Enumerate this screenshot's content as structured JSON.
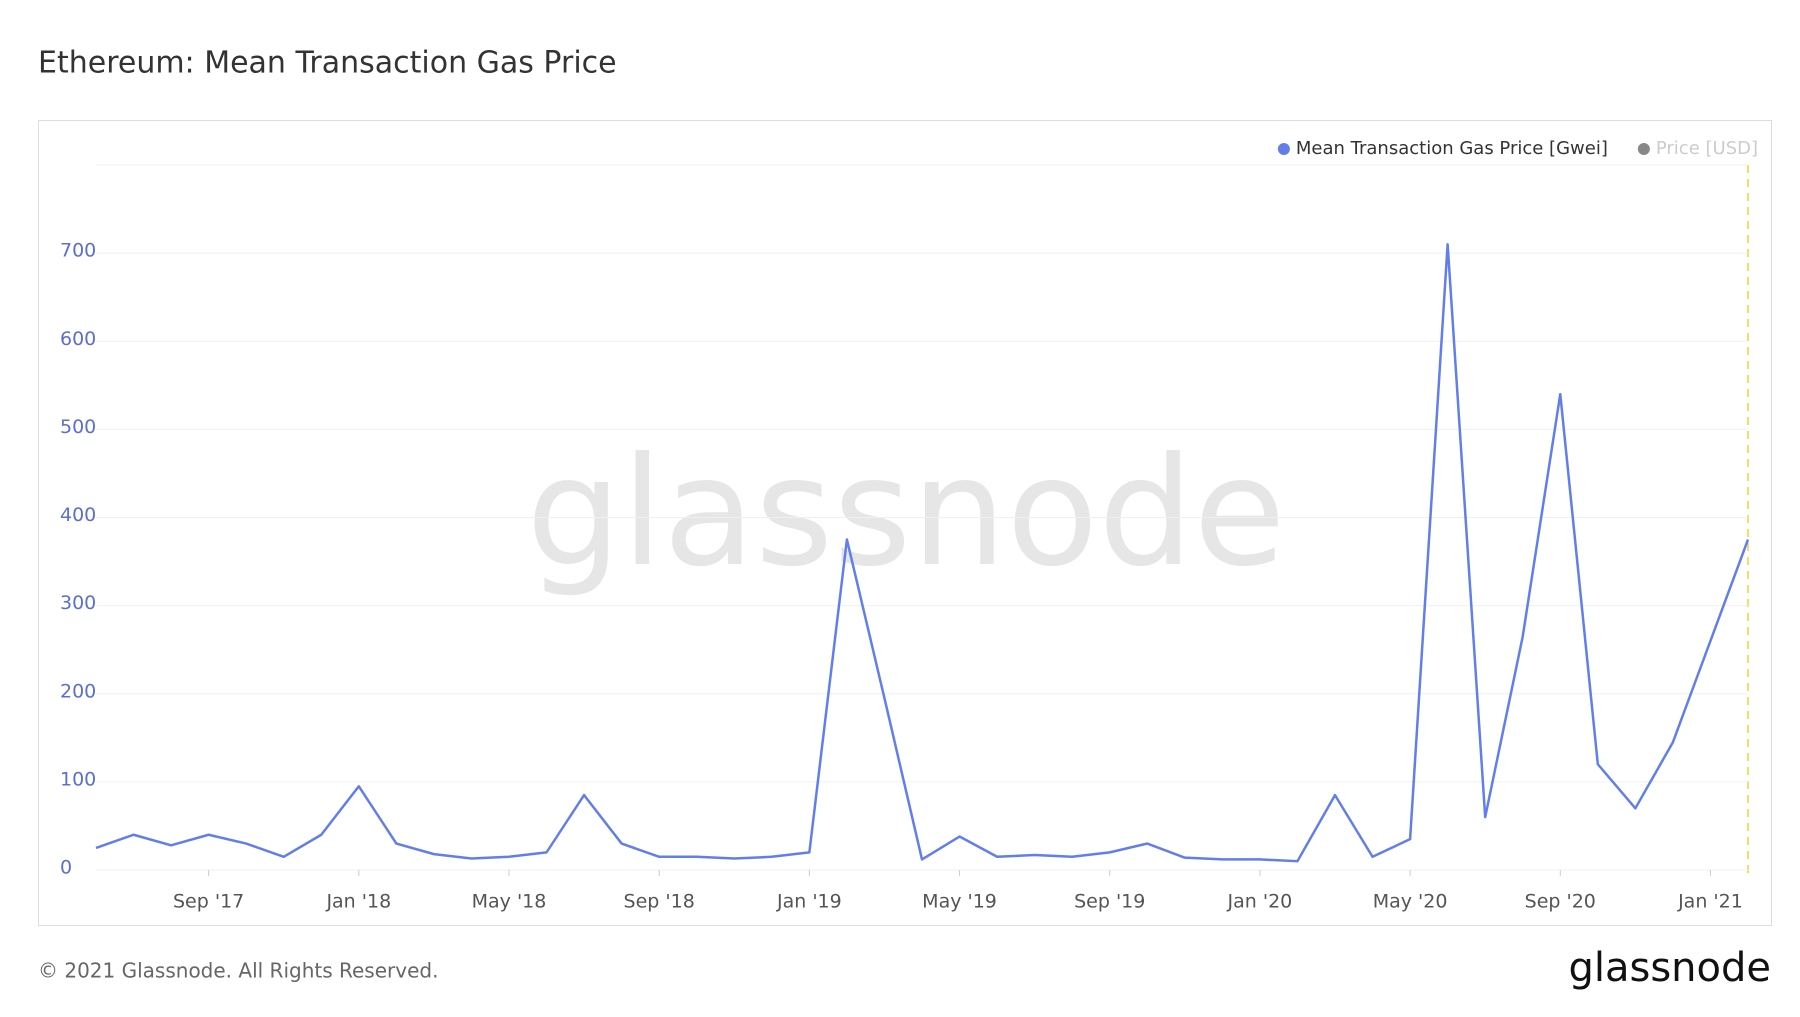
{
  "chart_data": {
    "type": "line",
    "title": "Ethereum: Mean Transaction Gas Price",
    "x": [
      "2017-06",
      "2017-07",
      "2017-08",
      "2017-09",
      "2017-10",
      "2017-11",
      "2017-12",
      "2018-01",
      "2018-02",
      "2018-03",
      "2018-04",
      "2018-05",
      "2018-06",
      "2018-07",
      "2018-08",
      "2018-09",
      "2018-10",
      "2018-11",
      "2018-12",
      "2019-01",
      "2019-02",
      "2019-03",
      "2019-04",
      "2019-05",
      "2019-06",
      "2019-07",
      "2019-08",
      "2019-09",
      "2019-10",
      "2019-11",
      "2019-12",
      "2020-01",
      "2020-02",
      "2020-03",
      "2020-04",
      "2020-05",
      "2020-06",
      "2020-07",
      "2020-08",
      "2020-09",
      "2020-10",
      "2020-11",
      "2020-12",
      "2021-01",
      "2021-02"
    ],
    "series": [
      {
        "name": "Mean Transaction Gas Price [Gwei]",
        "color": "#627eea",
        "visible": true,
        "values": [
          25,
          40,
          28,
          40,
          30,
          15,
          40,
          95,
          30,
          18,
          13,
          15,
          20,
          85,
          30,
          15,
          15,
          13,
          15,
          20,
          375,
          195,
          12,
          38,
          15,
          17,
          15,
          20,
          30,
          14,
          12,
          12,
          10,
          85,
          15,
          35,
          710,
          60,
          265,
          540,
          120,
          70,
          145,
          260,
          375
        ]
      },
      {
        "name": "Price [USD]",
        "color": "#888888",
        "visible": false,
        "values": [
          null,
          null,
          null,
          null,
          null,
          null,
          null,
          null,
          null,
          null,
          null,
          null,
          null,
          null,
          null,
          null,
          null,
          null,
          null,
          null,
          null,
          null,
          null,
          null,
          null,
          null,
          null,
          null,
          null,
          null,
          null,
          null,
          null,
          null,
          null,
          null,
          null,
          null,
          null,
          null,
          null,
          null,
          null,
          null,
          null
        ]
      }
    ],
    "ylim": [
      0,
      800
    ],
    "yticks": [
      0,
      100,
      200,
      300,
      400,
      500,
      600,
      700
    ],
    "grid": true,
    "xticks": [
      {
        "value": "2017-09",
        "label": "Sep '17"
      },
      {
        "value": "2018-01",
        "label": "Jan '18"
      },
      {
        "value": "2018-05",
        "label": "May '18"
      },
      {
        "value": "2018-09",
        "label": "Sep '18"
      },
      {
        "value": "2019-01",
        "label": "Jan '19"
      },
      {
        "value": "2019-05",
        "label": "May '19"
      },
      {
        "value": "2019-09",
        "label": "Sep '19"
      },
      {
        "value": "2020-01",
        "label": "Jan '20"
      },
      {
        "value": "2020-05",
        "label": "May '20"
      },
      {
        "value": "2020-09",
        "label": "Sep '20"
      },
      {
        "value": "2021-01",
        "label": "Jan '21"
      }
    ],
    "legend": "top-right"
  },
  "watermark": "glassnode",
  "footer": "© 2021 Glassnode. All Rights Reserved.",
  "logo": "glassnode"
}
